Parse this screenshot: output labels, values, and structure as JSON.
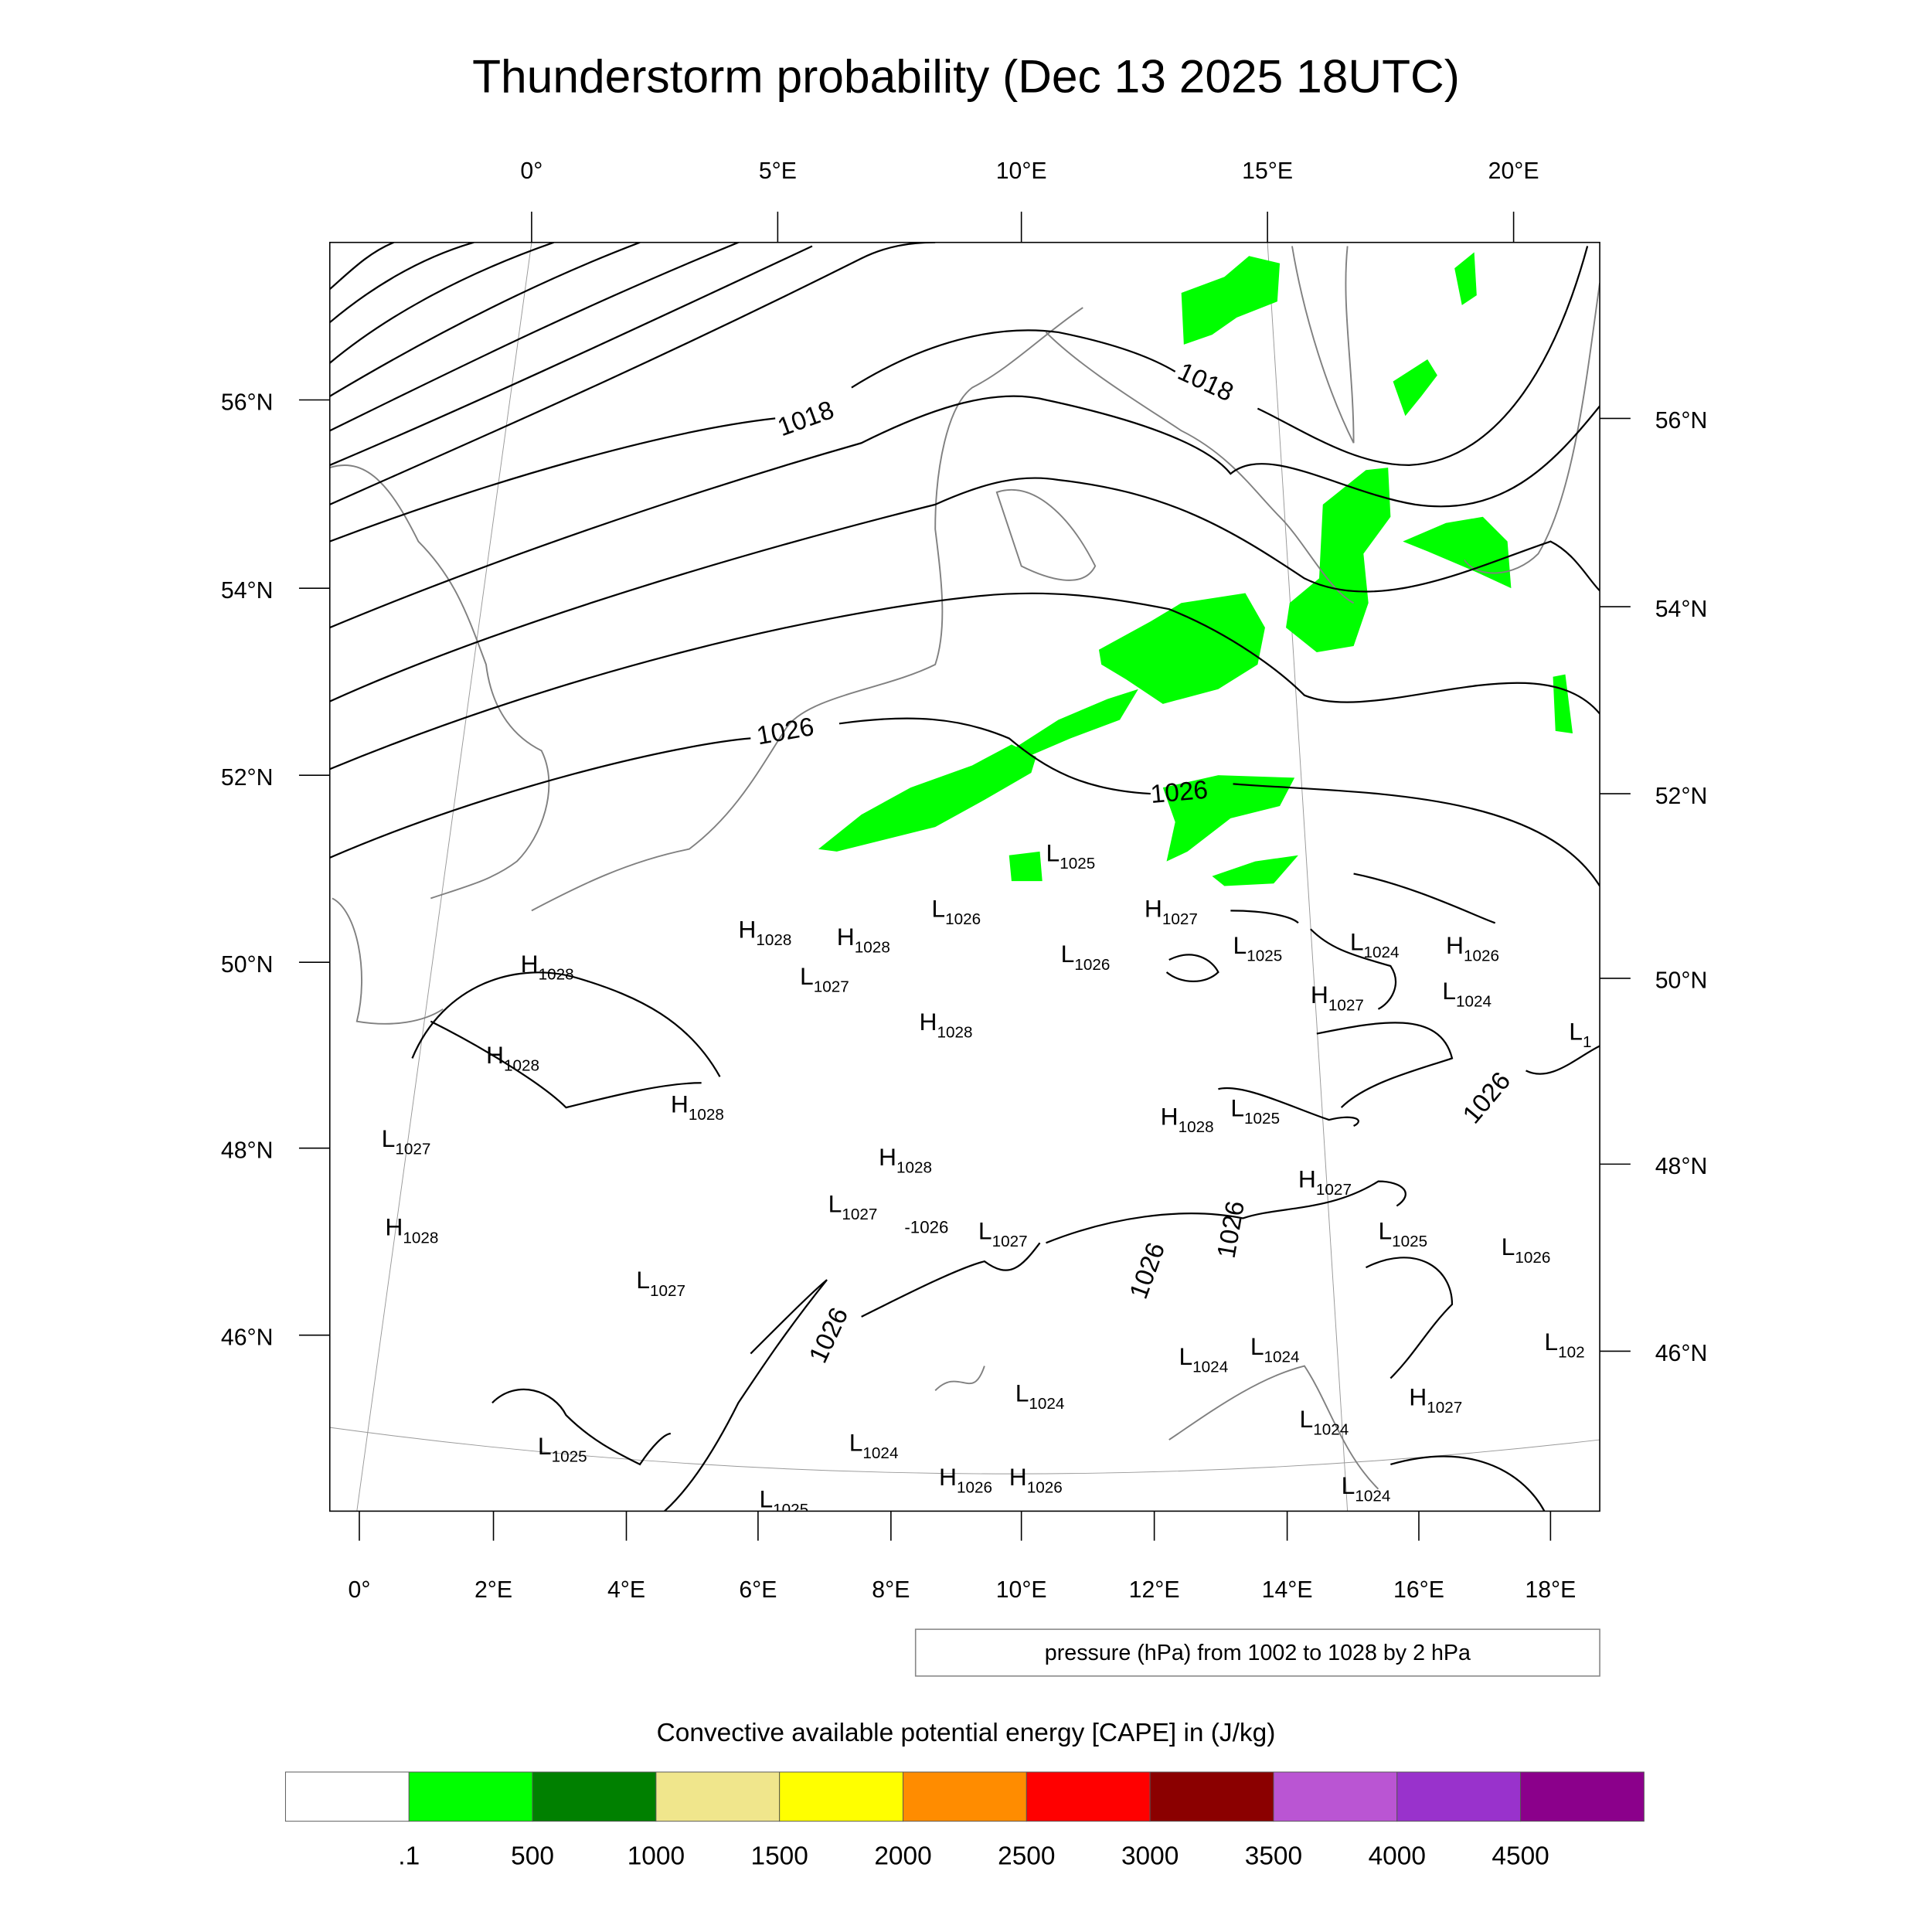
{
  "title": "Thunderstorm probability (Dec 13 2025 18UTC)",
  "top_lon_labels": [
    "0°",
    "5°E",
    "10°E",
    "15°E",
    "20°E"
  ],
  "bottom_lon_labels": [
    "0°",
    "2°E",
    "4°E",
    "6°E",
    "8°E",
    "10°E",
    "12°E",
    "14°E",
    "16°E",
    "18°E"
  ],
  "left_lat_labels": [
    "56°N",
    "54°N",
    "52°N",
    "50°N",
    "48°N",
    "46°N"
  ],
  "right_lat_labels": [
    "56°N",
    "54°N",
    "52°N",
    "50°N",
    "48°N",
    "46°N"
  ],
  "contour_labels": [
    "1018",
    "1018",
    "1026",
    "1026",
    "1026",
    "1026",
    "1026",
    "1026",
    "1026"
  ],
  "pressure_legend": "pressure (hPa) from 1002 to 1028 by 2 hPa",
  "colorbar": {
    "title": "Convective available potential energy [CAPE] in (J/kg)",
    "colors": [
      "#ffffff",
      "#00ff00",
      "#008000",
      "#f0e68c",
      "#ffff00",
      "#ff8c00",
      "#ff0000",
      "#8b0000",
      "#ba55d3",
      "#9932cc",
      "#8b008b"
    ],
    "labels": [
      ".1",
      "500",
      "1000",
      "1500",
      "2000",
      "2500",
      "3000",
      "3500",
      "4000",
      "4500"
    ]
  },
  "pressure_centers": [
    {
      "type": "H",
      "value": "1028"
    },
    {
      "type": "H",
      "value": "1028"
    },
    {
      "type": "L",
      "value": "1026"
    },
    {
      "type": "L",
      "value": "1025"
    },
    {
      "type": "H",
      "value": "1027"
    },
    {
      "type": "L",
      "value": "1025"
    },
    {
      "type": "L",
      "value": "1024"
    },
    {
      "type": "H",
      "value": "1026"
    },
    {
      "type": "H",
      "value": "1028"
    },
    {
      "type": "L",
      "value": "1027"
    },
    {
      "type": "L",
      "value": "1026"
    },
    {
      "type": "H",
      "value": "1027"
    },
    {
      "type": "L",
      "value": "1024"
    },
    {
      "type": "H",
      "value": "1028"
    },
    {
      "type": "H",
      "value": "1028"
    },
    {
      "type": "H",
      "value": "1028"
    },
    {
      "type": "L",
      "value": "1027"
    },
    {
      "type": "H",
      "value": "1028"
    },
    {
      "type": "L",
      "value": "1025"
    },
    {
      "type": "H",
      "value": "1028"
    },
    {
      "type": "H",
      "value": "1027"
    },
    {
      "type": "L",
      "value": "1027"
    },
    {
      "type": "L",
      "value": "1027"
    },
    {
      "type": "L",
      "value": "1025"
    },
    {
      "type": "L",
      "value": "1026"
    },
    {
      "type": "H",
      "value": "1028"
    },
    {
      "type": "L",
      "value": "1027"
    },
    {
      "type": "L",
      "value": "1024"
    },
    {
      "type": "L",
      "value": "1024"
    },
    {
      "type": "L",
      "value": "1024"
    },
    {
      "type": "L",
      "value": "1025"
    },
    {
      "type": "L",
      "value": "1024"
    },
    {
      "type": "H",
      "value": "1027"
    },
    {
      "type": "L",
      "value": "1024"
    },
    {
      "type": "H",
      "value": "1026"
    },
    {
      "type": "H",
      "value": "1026"
    },
    {
      "type": "L",
      "value": "1025"
    },
    {
      "type": "L",
      "value": "1024"
    },
    {
      "type": "L",
      "value": "102"
    },
    {
      "type": "L",
      "value": "1"
    }
  ]
}
